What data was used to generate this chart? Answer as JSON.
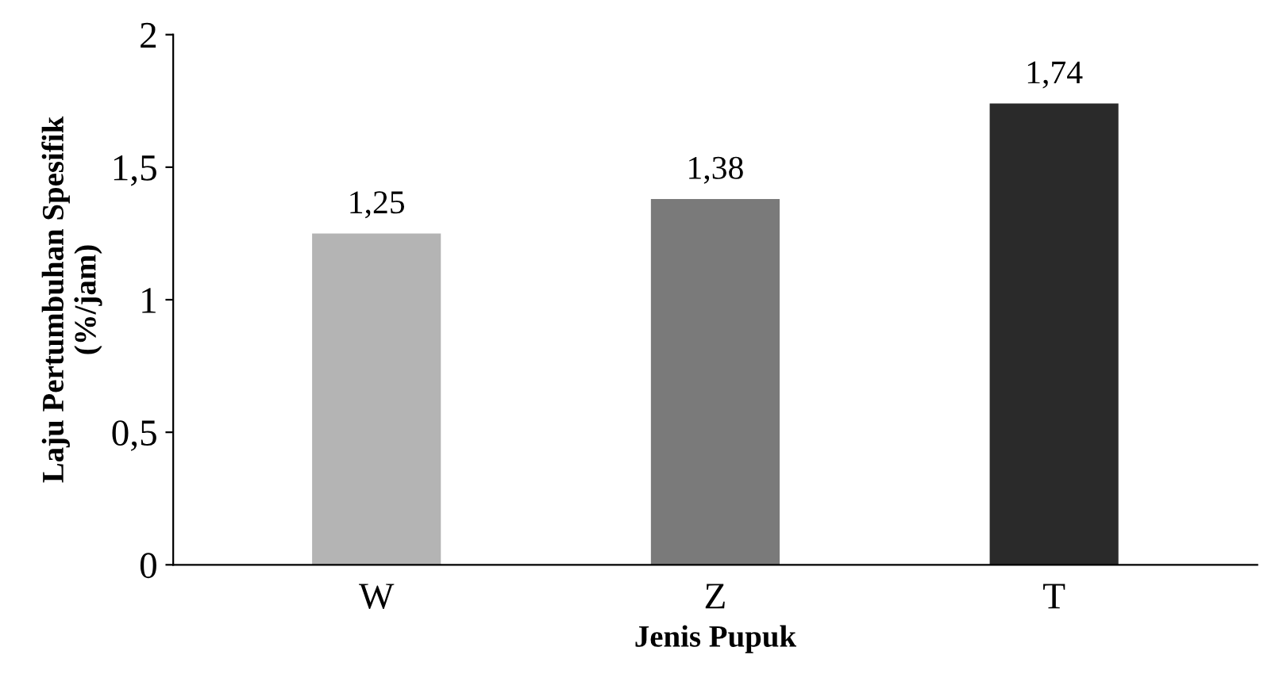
{
  "chart_data": {
    "type": "bar",
    "xlabel": "Jenis Pupuk",
    "ylabel": "Laju Pertumbuhan Spesifik\n(%/jam)",
    "categories": [
      "W",
      "Z",
      "T"
    ],
    "values": [
      1.25,
      1.38,
      1.74
    ],
    "colors": [
      "#b4b4b4",
      "#7a7a7a",
      "#2a2a2a"
    ],
    "value_labels": [
      "1,25",
      "1,38",
      "1,74"
    ],
    "ylim": [
      0,
      2
    ],
    "yticks": [
      0,
      {
        "value": 0.5,
        "label": "0,5"
      },
      1,
      {
        "value": 1.5,
        "label": "1,5"
      },
      2
    ],
    "grid": false,
    "legend": false
  }
}
